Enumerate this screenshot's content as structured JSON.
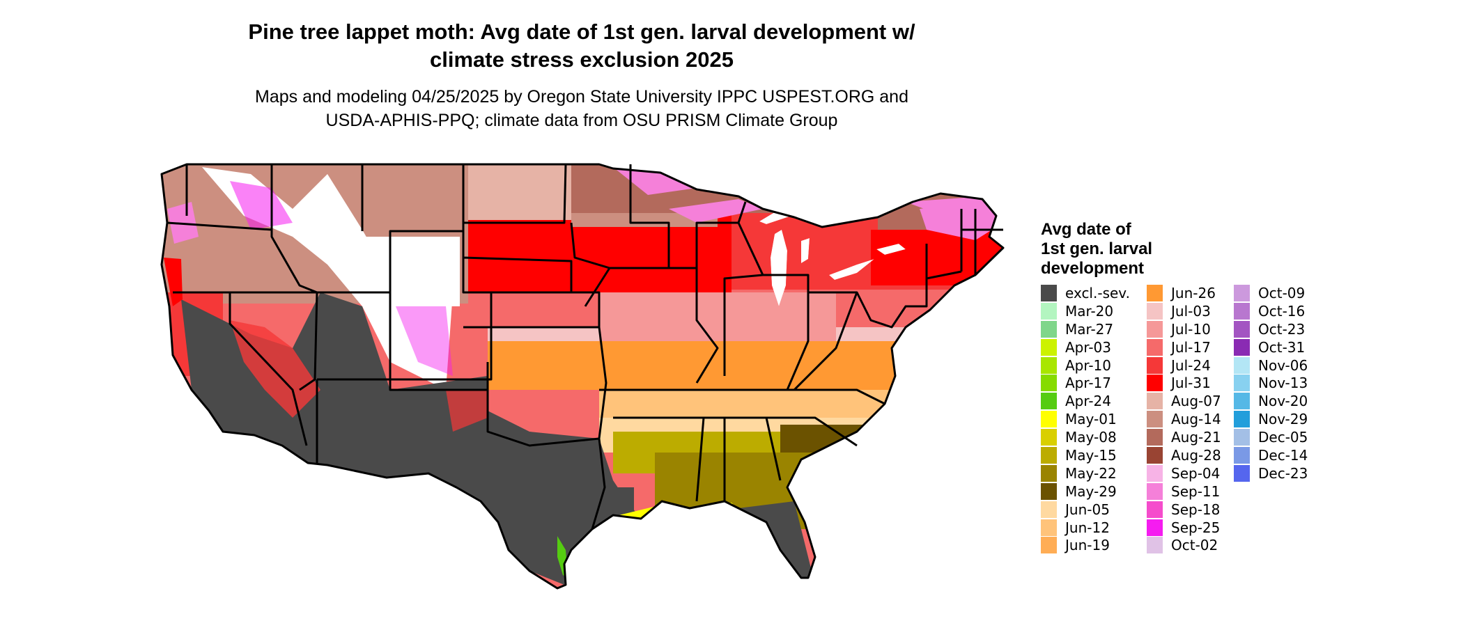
{
  "header": {
    "title_line1": "Pine tree lappet moth: Avg date of 1st gen. larval development w/",
    "title_line2": "climate stress exclusion 2025",
    "subtitle_line1": "Maps and modeling 04/25/2025 by Oregon State University IPPC USPEST.ORG and",
    "subtitle_line2": "USDA-APHIS-PPQ; climate data from OSU PRISM Climate Group"
  },
  "legend": {
    "title_line1": "Avg date of",
    "title_line2": "1st gen. larval",
    "title_line3": "development",
    "columns": [
      [
        {
          "label": "excl.-sev.",
          "color": "#4a4a4a"
        },
        {
          "label": "Mar-20",
          "color": "#b3f5c0"
        },
        {
          "label": "Mar-27",
          "color": "#7fd68a"
        },
        {
          "label": "Apr-03",
          "color": "#ccf200"
        },
        {
          "label": "Apr-10",
          "color": "#a8e600"
        },
        {
          "label": "Apr-17",
          "color": "#86db00"
        },
        {
          "label": "Apr-24",
          "color": "#55cc11"
        },
        {
          "label": "May-01",
          "color": "#ffff00"
        },
        {
          "label": "May-08",
          "color": "#d9cf00"
        },
        {
          "label": "May-15",
          "color": "#bcac00"
        },
        {
          "label": "May-22",
          "color": "#9a8400"
        },
        {
          "label": "May-29",
          "color": "#6b5200"
        },
        {
          "label": "Jun-05",
          "color": "#ffd9a0"
        },
        {
          "label": "Jun-12",
          "color": "#ffc37a"
        },
        {
          "label": "Jun-19",
          "color": "#ffad55"
        }
      ],
      [
        {
          "label": "Jun-26",
          "color": "#ff9933"
        },
        {
          "label": "Jul-03",
          "color": "#f5c4c4"
        },
        {
          "label": "Jul-10",
          "color": "#f59898"
        },
        {
          "label": "Jul-17",
          "color": "#f56a6a"
        },
        {
          "label": "Jul-24",
          "color": "#f53838"
        },
        {
          "label": "Jul-31",
          "color": "#ff0000"
        },
        {
          "label": "Aug-07",
          "color": "#e6b3a6"
        },
        {
          "label": "Aug-14",
          "color": "#cc8f80"
        },
        {
          "label": "Aug-21",
          "color": "#b36a5c"
        },
        {
          "label": "Aug-28",
          "color": "#994433"
        },
        {
          "label": "Sep-04",
          "color": "#f7b3e6"
        },
        {
          "label": "Sep-11",
          "color": "#f580d9"
        },
        {
          "label": "Sep-18",
          "color": "#f54ccc"
        },
        {
          "label": "Sep-25",
          "color": "#f51cf0"
        },
        {
          "label": "Oct-02",
          "color": "#e0c2e6"
        }
      ],
      [
        {
          "label": "Oct-09",
          "color": "#cc99dd"
        },
        {
          "label": "Oct-16",
          "color": "#b877cf"
        },
        {
          "label": "Oct-23",
          "color": "#a355c2"
        },
        {
          "label": "Oct-31",
          "color": "#8a2bb3"
        },
        {
          "label": "Nov-06",
          "color": "#b3e6f5"
        },
        {
          "label": "Nov-13",
          "color": "#88d1f0"
        },
        {
          "label": "Nov-20",
          "color": "#55b8e6"
        },
        {
          "label": "Nov-29",
          "color": "#229edb"
        },
        {
          "label": "Dec-05",
          "color": "#a3bfe6"
        },
        {
          "label": "Dec-14",
          "color": "#7a99e6"
        },
        {
          "label": "Dec-23",
          "color": "#5566ee"
        }
      ]
    ]
  }
}
